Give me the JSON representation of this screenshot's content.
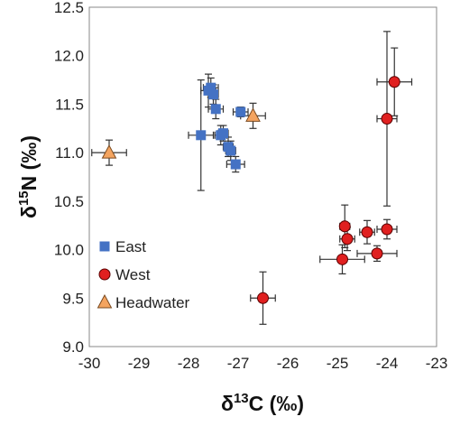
{
  "chart_data": {
    "type": "scatter",
    "title": "",
    "xlabel": {
      "prefix": "δ",
      "sup": "13",
      "main": "C (‰)"
    },
    "ylabel": {
      "prefix": "δ",
      "sup": "15",
      "main": "N (‰)"
    },
    "xlim": [
      -30,
      -23
    ],
    "ylim": [
      9.0,
      12.5
    ],
    "xticks": [
      -30,
      -29,
      -28,
      -27,
      -26,
      -25,
      -24,
      -23
    ],
    "yticks": [
      9.0,
      9.5,
      10.0,
      10.5,
      11.0,
      11.5,
      12.0,
      12.5
    ],
    "xtick_labels": [
      "-30",
      "-29",
      "-28",
      "-27",
      "-26",
      "-25",
      "-24",
      "-23"
    ],
    "ytick_labels": [
      "9.0",
      "9.5",
      "10.0",
      "10.5",
      "11.0",
      "11.5",
      "12.0",
      "12.5"
    ],
    "grid": false,
    "legend_position": "bottom-left",
    "error_bars": true,
    "series": [
      {
        "name": "East",
        "marker": "square",
        "color": "#4472C4",
        "points": [
          {
            "x": -27.6,
            "y": 11.64,
            "xerr": 0.15,
            "yerr": 0.17
          },
          {
            "x": -27.55,
            "y": 11.67,
            "xerr": 0.15,
            "yerr": 0.1
          },
          {
            "x": -27.5,
            "y": 11.6,
            "xerr": 0.1,
            "yerr": 0.1
          },
          {
            "x": -27.45,
            "y": 11.45,
            "xerr": 0.15,
            "yerr": 0.1
          },
          {
            "x": -27.35,
            "y": 11.18,
            "xerr": 0.12,
            "yerr": 0.1
          },
          {
            "x": -27.3,
            "y": 11.2,
            "xerr": 0.1,
            "yerr": 0.08
          },
          {
            "x": -27.75,
            "y": 11.18,
            "xerr": 0.25,
            "yerr": 0.57
          },
          {
            "x": -27.2,
            "y": 11.06,
            "xerr": 0.1,
            "yerr": 0.1
          },
          {
            "x": -27.15,
            "y": 11.02,
            "xerr": 0.1,
            "yerr": 0.1
          },
          {
            "x": -27.05,
            "y": 10.88,
            "xerr": 0.18,
            "yerr": 0.08
          },
          {
            "x": -26.95,
            "y": 11.42,
            "xerr": 0.15,
            "yerr": 0.05
          }
        ]
      },
      {
        "name": "West",
        "marker": "circle",
        "color": "#E02020",
        "points": [
          {
            "x": -23.85,
            "y": 11.73,
            "xerr": 0.35,
            "yerr": 0.35
          },
          {
            "x": -24.0,
            "y": 11.35,
            "xerr": 0.2,
            "yerr": 0.9
          },
          {
            "x": -24.85,
            "y": 10.24,
            "xerr": 0.1,
            "yerr": 0.22
          },
          {
            "x": -24.8,
            "y": 10.11,
            "xerr": 0.15,
            "yerr": 0.12
          },
          {
            "x": -24.4,
            "y": 10.18,
            "xerr": 0.15,
            "yerr": 0.12
          },
          {
            "x": -24.0,
            "y": 10.21,
            "xerr": 0.2,
            "yerr": 0.1
          },
          {
            "x": -24.9,
            "y": 9.9,
            "xerr": 0.45,
            "yerr": 0.15
          },
          {
            "x": -24.2,
            "y": 9.96,
            "xerr": 0.4,
            "yerr": 0.08
          },
          {
            "x": -26.5,
            "y": 9.5,
            "xerr": 0.25,
            "yerr": 0.27
          }
        ]
      },
      {
        "name": "Headwater",
        "marker": "triangle",
        "color": "#F4A460",
        "points": [
          {
            "x": -29.6,
            "y": 11.0,
            "xerr": 0.35,
            "yerr": 0.13
          },
          {
            "x": -26.7,
            "y": 11.38,
            "xerr": 0.25,
            "yerr": 0.13
          }
        ]
      }
    ]
  }
}
